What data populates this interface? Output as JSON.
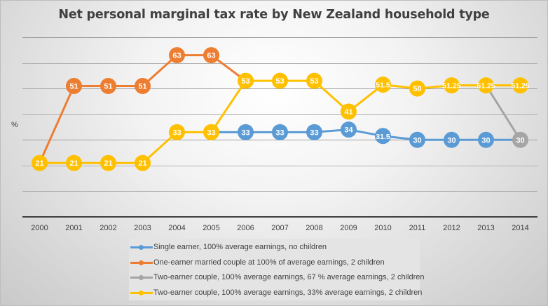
{
  "chart_data": {
    "type": "line",
    "title": "Net personal marginal tax rate by New Zealand household type",
    "xlabel": "",
    "ylabel": "%",
    "ylim": [
      0,
      70
    ],
    "y_gridlines": [
      10,
      20,
      30,
      40,
      50,
      60,
      70
    ],
    "y_tick_labels_shown": false,
    "grid": true,
    "legend_position": "bottom",
    "categories": [
      "2000",
      "2001",
      "2002",
      "2003",
      "2004",
      "2005",
      "2006",
      "2007",
      "2008",
      "2009",
      "2010",
      "2011",
      "2012",
      "2013",
      "2014"
    ],
    "series": [
      {
        "name": "Single earner, 100% average earnings, no children",
        "color": "#5B9BD5",
        "values": [
          null,
          null,
          null,
          null,
          null,
          33,
          33,
          33,
          33,
          34,
          31.5,
          30,
          30,
          30,
          30
        ],
        "labels": [
          null,
          null,
          null,
          null,
          null,
          null,
          "33",
          "33",
          "33",
          "34",
          "31.5",
          "30",
          "30",
          "30",
          null
        ]
      },
      {
        "name": "One-earner married couple at 100% of average earnings, 2 children",
        "color": "#ED7D31",
        "values": [
          21,
          51,
          51,
          51,
          63,
          63,
          53,
          null,
          null,
          null,
          null,
          null,
          null,
          null,
          null
        ],
        "labels": [
          null,
          "51",
          "51",
          "51",
          "63",
          "63",
          null,
          null,
          null,
          null,
          null,
          null,
          null,
          null,
          null
        ]
      },
      {
        "name": "Two-earner couple, 100% average earnings, 67 % average earnings, 2 children",
        "color": "#A5A5A5",
        "values": [
          null,
          null,
          null,
          null,
          null,
          null,
          null,
          null,
          null,
          null,
          null,
          null,
          null,
          51.25,
          30
        ],
        "labels": [
          null,
          null,
          null,
          null,
          null,
          null,
          null,
          null,
          null,
          null,
          null,
          null,
          null,
          null,
          "30"
        ]
      },
      {
        "name": "Two-earner couple, 100% average earnings, 33% average earnings, 2 children",
        "color": "#FFC000",
        "values": [
          21,
          21,
          21,
          21,
          33,
          33,
          53,
          53,
          53,
          41,
          51.5,
          50,
          51.25,
          51.25,
          51.25
        ],
        "labels": [
          "21",
          "21",
          "21",
          "21",
          "33",
          "33",
          "53",
          "53",
          "53",
          "41",
          "51.5",
          "50",
          "51.25",
          "51.25",
          "51.25"
        ]
      }
    ]
  }
}
